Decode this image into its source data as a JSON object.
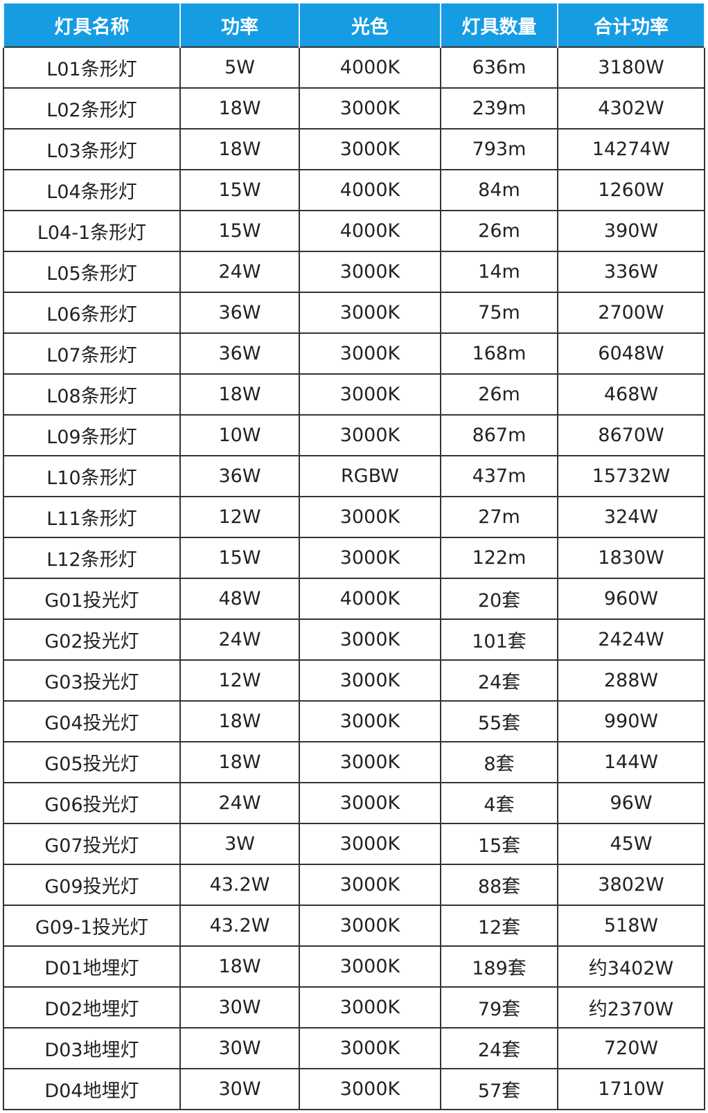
{
  "colors": {
    "header_bg": "#169ce2",
    "header_text": "#ffffff",
    "border": "#333333"
  },
  "headers": [
    "灯具名称",
    "功率",
    "光色",
    "灯具数量",
    "合计功率"
  ],
  "rows": [
    [
      "L01条形灯",
      "5W",
      "4000K",
      "636m",
      "3180W"
    ],
    [
      "L02条形灯",
      "18W",
      "3000K",
      "239m",
      "4302W"
    ],
    [
      "L03条形灯",
      "18W",
      "3000K",
      "793m",
      "14274W"
    ],
    [
      "L04条形灯",
      "15W",
      "4000K",
      "84m",
      "1260W"
    ],
    [
      "L04-1条形灯",
      "15W",
      "4000K",
      "26m",
      "390W"
    ],
    [
      "L05条形灯",
      "24W",
      "3000K",
      "14m",
      "336W"
    ],
    [
      "L06条形灯",
      "36W",
      "3000K",
      "75m",
      "2700W"
    ],
    [
      "L07条形灯",
      "36W",
      "3000K",
      "168m",
      "6048W"
    ],
    [
      "L08条形灯",
      "18W",
      "3000K",
      "26m",
      "468W"
    ],
    [
      "L09条形灯",
      "10W",
      "3000K",
      "867m",
      "8670W"
    ],
    [
      "L10条形灯",
      "36W",
      "RGBW",
      "437m",
      "15732W"
    ],
    [
      "L11条形灯",
      "12W",
      "3000K",
      "27m",
      "324W"
    ],
    [
      "L12条形灯",
      "15W",
      "3000K",
      "122m",
      "1830W"
    ],
    [
      "G01投光灯",
      "48W",
      "4000K",
      "20套",
      "960W"
    ],
    [
      "G02投光灯",
      "24W",
      "3000K",
      "101套",
      "2424W"
    ],
    [
      "G03投光灯",
      "12W",
      "3000K",
      "24套",
      "288W"
    ],
    [
      "G04投光灯",
      "18W",
      "3000K",
      "55套",
      "990W"
    ],
    [
      "G05投光灯",
      "18W",
      "3000K",
      "8套",
      "144W"
    ],
    [
      "G06投光灯",
      "24W",
      "3000K",
      "4套",
      "96W"
    ],
    [
      "G07投光灯",
      "3W",
      "3000K",
      "15套",
      "45W"
    ],
    [
      "G09投光灯",
      "43.2W",
      "3000K",
      "88套",
      "3802W"
    ],
    [
      "G09-1投光灯",
      "43.2W",
      "3000K",
      "12套",
      "518W"
    ],
    [
      "D01地埋灯",
      "18W",
      "3000K",
      "189套",
      "约3402W"
    ],
    [
      "D02地埋灯",
      "30W",
      "3000K",
      "79套",
      "约2370W"
    ],
    [
      "D03地埋灯",
      "30W",
      "3000K",
      "24套",
      "720W"
    ],
    [
      "D04地埋灯",
      "30W",
      "3000K",
      "57套",
      "1710W"
    ]
  ]
}
